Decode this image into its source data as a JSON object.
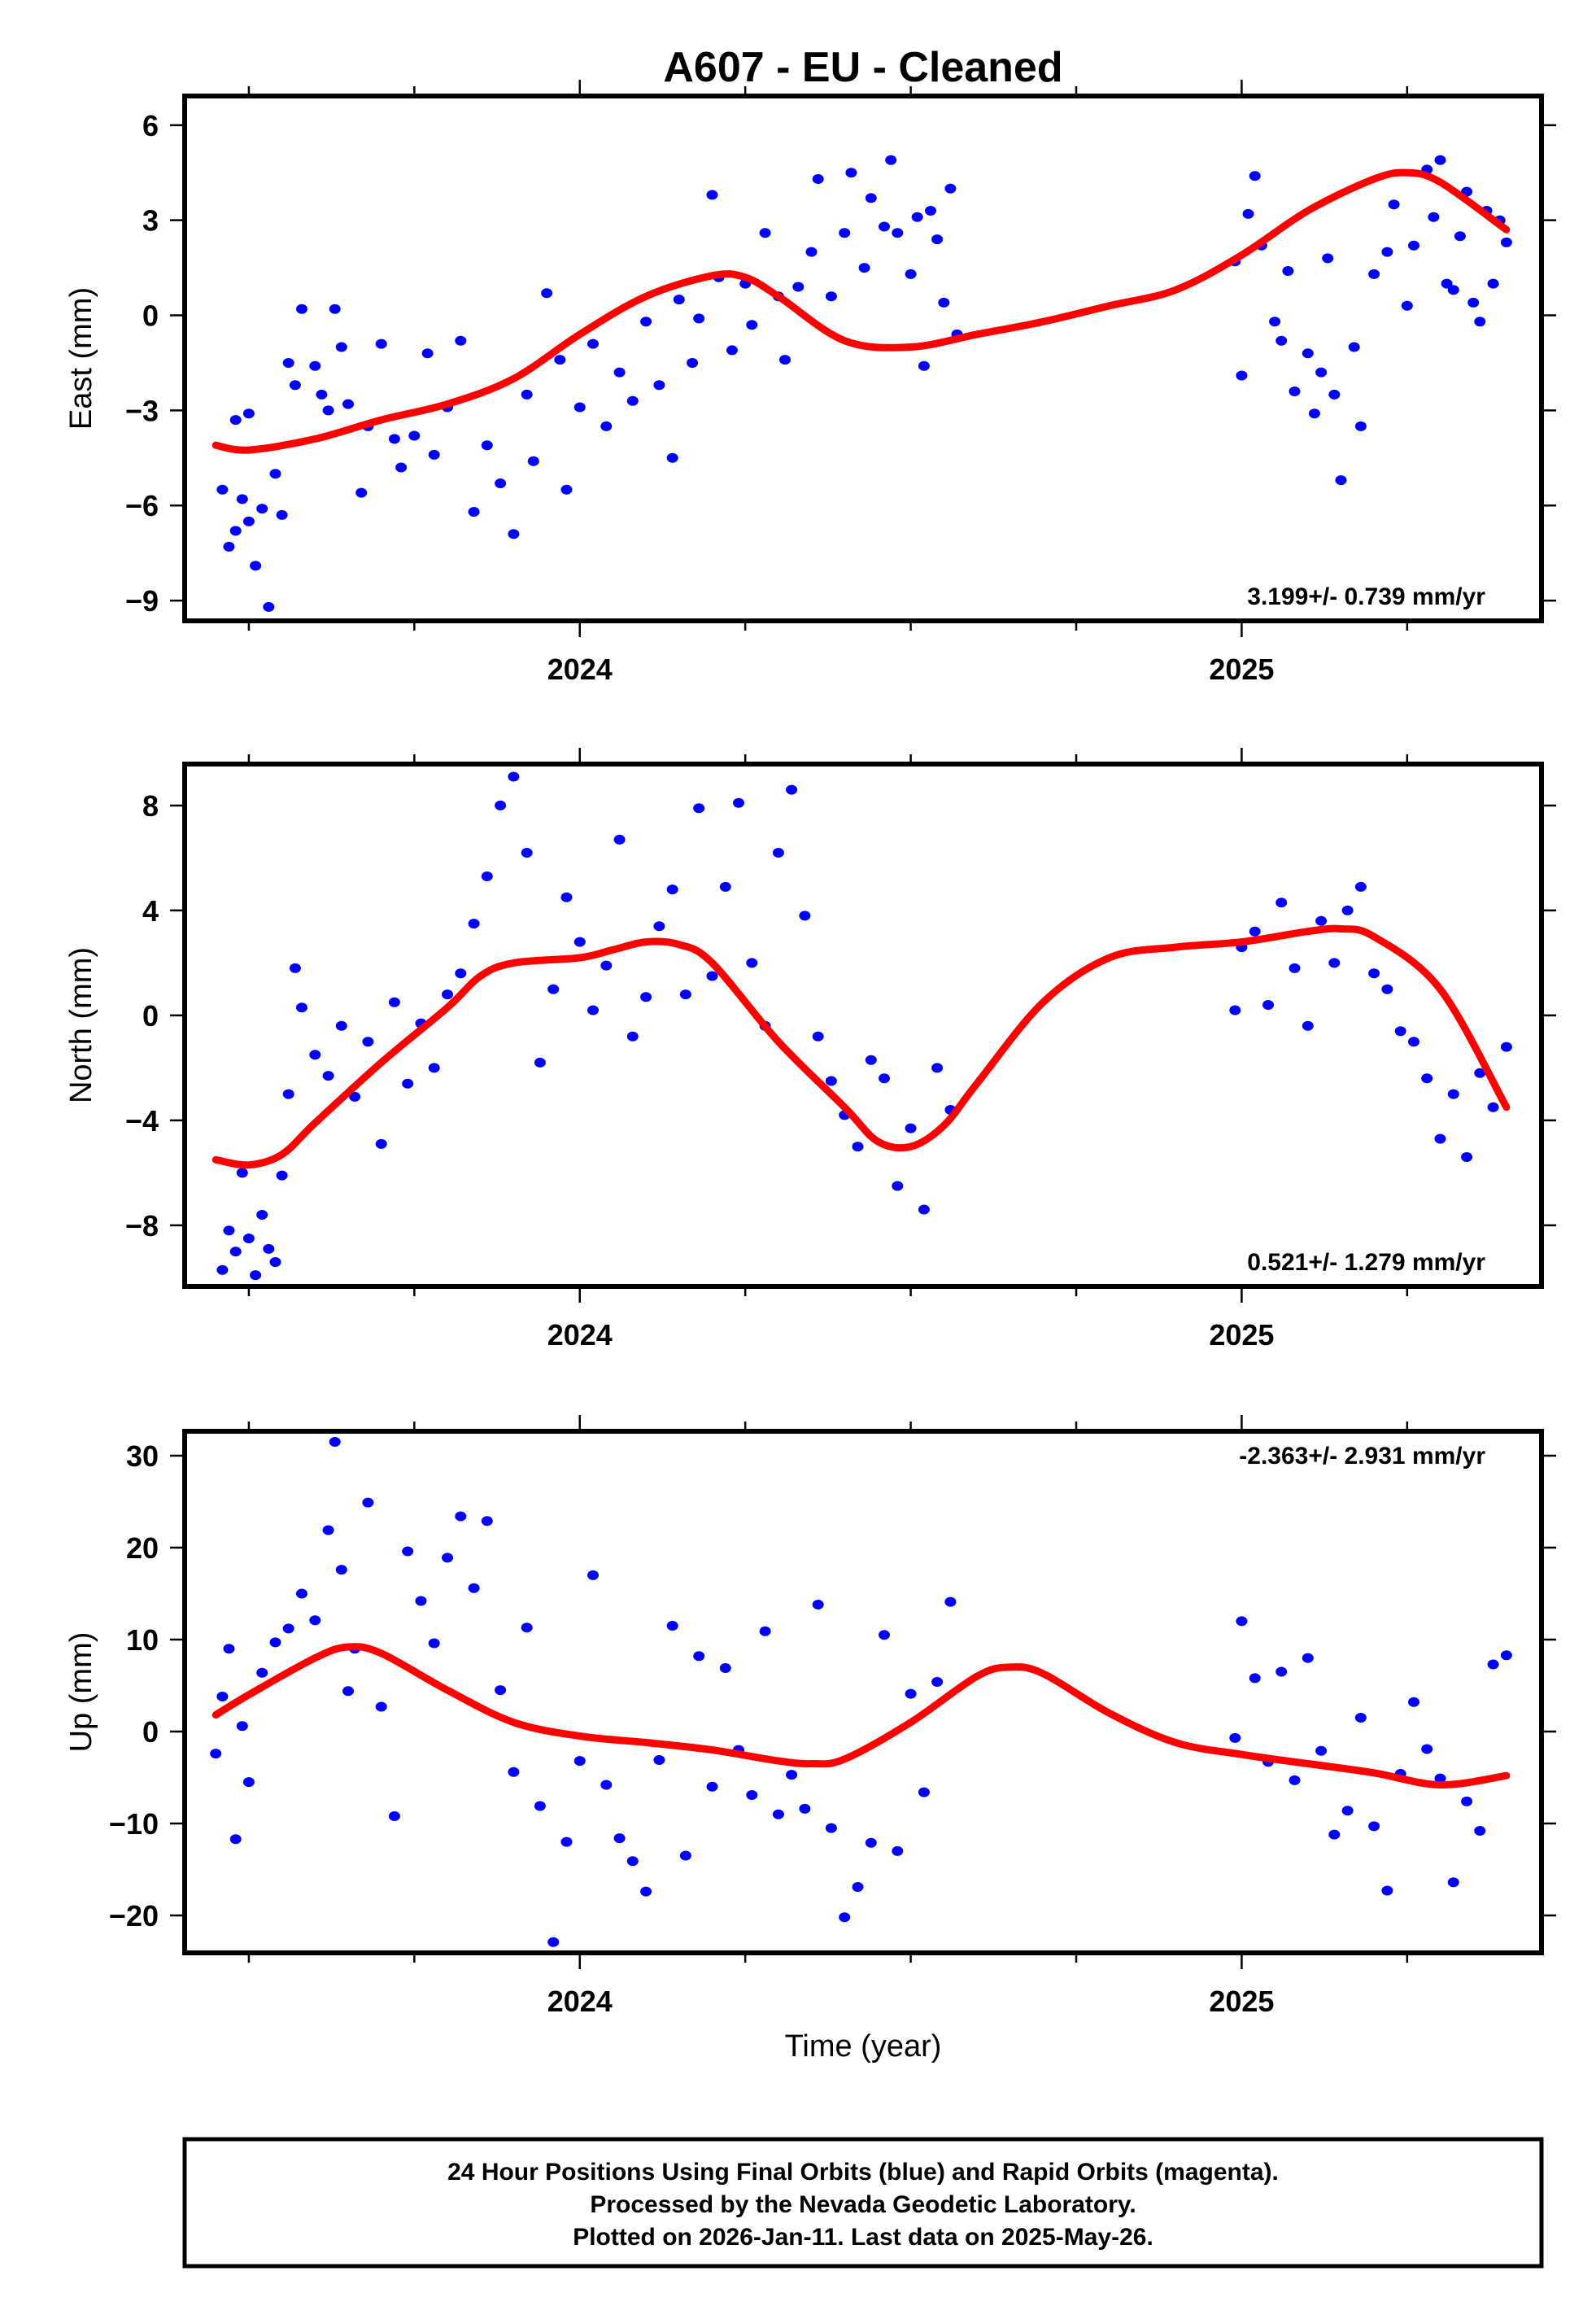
{
  "chart_data": {
    "type": "scatter",
    "title": "A607  - EU - Cleaned",
    "xlabel": "Time (year)",
    "xlim": [
      2023.403,
      2025.453
    ],
    "x_major_ticks": [
      2024,
      2025
    ],
    "x_tick_labels": [
      "2024",
      "2025"
    ],
    "x_minor_step": 0.25,
    "colors": {
      "points": "#0000ff",
      "trend": "#ff0000",
      "frame": "#000000"
    },
    "panels": [
      {
        "name": "east",
        "ylabel": "East (mm)",
        "ylim": [
          -9.64,
          6.92
        ],
        "yticks": [
          6,
          3,
          0,
          -3,
          -6,
          -9
        ],
        "ytick_labels": [
          "6",
          "3",
          "0",
          "−3",
          "−6",
          "−9"
        ],
        "rate_label": "3.199+/- 0.739 mm/yr",
        "rate_position": "bottom-right",
        "trend": {
          "x": [
            2023.45,
            2023.5,
            2023.6,
            2023.7,
            2023.8,
            2023.9,
            2024.0,
            2024.1,
            2024.2,
            2024.25,
            2024.3,
            2024.4,
            2024.5,
            2024.6,
            2024.7,
            2024.8,
            2024.9,
            2025.0,
            2025.1,
            2025.2,
            2025.25,
            2025.3,
            2025.4
          ],
          "y": [
            -4.1,
            -4.25,
            -3.9,
            -3.3,
            -2.8,
            -2.0,
            -0.6,
            0.6,
            1.25,
            1.2,
            0.6,
            -0.8,
            -1.0,
            -0.6,
            -0.2,
            0.3,
            0.8,
            1.9,
            3.3,
            4.3,
            4.5,
            4.2,
            2.7
          ]
        },
        "points": {
          "x": [
            2023.46,
            2023.47,
            2023.48,
            2023.48,
            2023.49,
            2023.5,
            2023.5,
            2023.51,
            2023.52,
            2023.53,
            2023.54,
            2023.55,
            2023.56,
            2023.57,
            2023.58,
            2023.6,
            2023.61,
            2023.62,
            2023.63,
            2023.64,
            2023.65,
            2023.67,
            2023.68,
            2023.7,
            2023.72,
            2023.73,
            2023.75,
            2023.77,
            2023.78,
            2023.8,
            2023.82,
            2023.84,
            2023.86,
            2023.88,
            2023.9,
            2023.92,
            2023.93,
            2023.95,
            2023.97,
            2023.98,
            2024.0,
            2024.02,
            2024.04,
            2024.06,
            2024.08,
            2024.1,
            2024.12,
            2024.14,
            2024.15,
            2024.17,
            2024.18,
            2024.2,
            2024.21,
            2024.23,
            2024.25,
            2024.26,
            2024.28,
            2024.3,
            2024.31,
            2024.33,
            2024.35,
            2024.36,
            2024.38,
            2024.4,
            2024.41,
            2024.43,
            2024.44,
            2024.46,
            2024.47,
            2024.48,
            2024.5,
            2024.51,
            2024.52,
            2024.53,
            2024.54,
            2024.55,
            2024.56,
            2024.57,
            2024.99,
            2025.0,
            2025.01,
            2025.02,
            2025.03,
            2025.05,
            2025.06,
            2025.07,
            2025.08,
            2025.1,
            2025.11,
            2025.12,
            2025.13,
            2025.14,
            2025.15,
            2025.17,
            2025.18,
            2025.2,
            2025.22,
            2025.23,
            2025.25,
            2025.26,
            2025.28,
            2025.29,
            2025.3,
            2025.31,
            2025.32,
            2025.33,
            2025.34,
            2025.35,
            2025.36,
            2025.37,
            2025.38,
            2025.39,
            2025.4
          ],
          "y": [
            -5.5,
            -7.3,
            -6.8,
            -3.3,
            -5.8,
            -6.5,
            -3.1,
            -7.9,
            -6.1,
            -9.2,
            -5.0,
            -6.3,
            -1.5,
            -2.2,
            0.2,
            -1.6,
            -2.5,
            -3.0,
            0.2,
            -1.0,
            -2.8,
            -5.6,
            -3.5,
            -0.9,
            -3.9,
            -4.8,
            -3.8,
            -1.2,
            -4.4,
            -2.9,
            -0.8,
            -6.2,
            -4.1,
            -5.3,
            -6.9,
            -2.5,
            -4.6,
            0.7,
            -1.4,
            -5.5,
            -2.9,
            -0.9,
            -3.5,
            -1.8,
            -2.7,
            -0.2,
            -2.2,
            -4.5,
            0.5,
            -1.5,
            -0.1,
            3.8,
            1.2,
            -1.1,
            1.0,
            -0.3,
            2.6,
            0.6,
            -1.4,
            0.9,
            2.0,
            4.3,
            0.6,
            2.6,
            4.5,
            1.5,
            3.7,
            2.8,
            4.9,
            2.6,
            1.3,
            3.1,
            -1.6,
            3.3,
            2.4,
            0.4,
            4.0,
            -0.6,
            1.7,
            -1.9,
            3.2,
            4.4,
            2.2,
            -0.2,
            -0.8,
            1.4,
            -2.4,
            -1.2,
            -3.1,
            -1.8,
            1.8,
            -2.5,
            -5.2,
            -1.0,
            -3.5,
            1.3,
            2.0,
            3.5,
            0.3,
            2.2,
            4.6,
            3.1,
            4.9,
            1.0,
            0.8,
            2.5,
            3.9,
            0.4,
            -0.2,
            3.3,
            1.0,
            3.0,
            2.3
          ],
          "note": "representative sample"
        }
      },
      {
        "name": "north",
        "ylabel": "North (mm)",
        "ylim": [
          -10.33,
          9.58
        ],
        "yticks": [
          8,
          4,
          0,
          -4,
          -8
        ],
        "ytick_labels": [
          "8",
          "4",
          "0",
          "−4",
          "−8"
        ],
        "rate_label": "0.521+/- 1.279 mm/yr",
        "rate_position": "bottom-right",
        "trend": {
          "x": [
            2023.45,
            2023.5,
            2023.55,
            2023.6,
            2023.7,
            2023.8,
            2023.85,
            2023.9,
            2024.0,
            2024.05,
            2024.1,
            2024.15,
            2024.2,
            2024.3,
            2024.4,
            2024.45,
            2024.5,
            2024.55,
            2024.6,
            2024.7,
            2024.8,
            2024.9,
            2025.0,
            2025.1,
            2025.15,
            2025.2,
            2025.3,
            2025.4
          ],
          "y": [
            -5.5,
            -5.7,
            -5.3,
            -4.1,
            -1.8,
            0.3,
            1.5,
            2.0,
            2.2,
            2.5,
            2.8,
            2.7,
            2.0,
            -1.0,
            -3.5,
            -4.8,
            -5.0,
            -4.2,
            -2.6,
            0.5,
            2.2,
            2.6,
            2.8,
            3.2,
            3.3,
            3.0,
            1.0,
            -3.5
          ]
        },
        "points": {
          "x": [
            2023.46,
            2023.47,
            2023.48,
            2023.49,
            2023.5,
            2023.51,
            2023.52,
            2023.53,
            2023.54,
            2023.55,
            2023.56,
            2023.57,
            2023.58,
            2023.6,
            2023.62,
            2023.64,
            2023.66,
            2023.68,
            2023.7,
            2023.72,
            2023.74,
            2023.76,
            2023.78,
            2023.8,
            2023.82,
            2023.84,
            2023.86,
            2023.88,
            2023.9,
            2023.92,
            2023.94,
            2023.96,
            2023.98,
            2024.0,
            2024.02,
            2024.04,
            2024.06,
            2024.08,
            2024.1,
            2024.12,
            2024.14,
            2024.16,
            2024.18,
            2024.2,
            2024.22,
            2024.24,
            2024.26,
            2024.28,
            2024.3,
            2024.32,
            2024.34,
            2024.36,
            2024.38,
            2024.4,
            2024.42,
            2024.44,
            2024.46,
            2024.48,
            2024.5,
            2024.52,
            2024.54,
            2024.56,
            2024.99,
            2025.0,
            2025.02,
            2025.04,
            2025.06,
            2025.08,
            2025.1,
            2025.12,
            2025.14,
            2025.16,
            2025.18,
            2025.2,
            2025.22,
            2025.24,
            2025.26,
            2025.28,
            2025.3,
            2025.32,
            2025.34,
            2025.36,
            2025.38,
            2025.4
          ],
          "y": [
            -9.7,
            -8.2,
            -9.0,
            -6.0,
            -8.5,
            -9.9,
            -7.6,
            -8.9,
            -9.4,
            -6.1,
            -3.0,
            1.8,
            0.3,
            -1.5,
            -2.3,
            -0.4,
            -3.1,
            -1.0,
            -4.9,
            0.5,
            -2.6,
            -0.3,
            -2.0,
            0.8,
            1.6,
            3.5,
            5.3,
            8.0,
            9.1,
            6.2,
            -1.8,
            1.0,
            4.5,
            2.8,
            0.2,
            1.9,
            6.7,
            -0.8,
            0.7,
            3.4,
            4.8,
            0.8,
            7.9,
            1.5,
            4.9,
            8.1,
            2.0,
            -0.4,
            6.2,
            8.6,
            3.8,
            -0.8,
            -2.5,
            -3.8,
            -5.0,
            -1.7,
            -2.4,
            -6.5,
            -4.3,
            -7.4,
            -2.0,
            -3.6,
            0.2,
            2.6,
            3.2,
            0.4,
            4.3,
            1.8,
            -0.4,
            3.6,
            2.0,
            4.0,
            4.9,
            1.6,
            1.0,
            -0.6,
            -1.0,
            -2.4,
            -4.7,
            -3.0,
            -5.4,
            -2.2,
            -3.5,
            -1.2
          ],
          "note": "representative sample"
        }
      },
      {
        "name": "up",
        "ylabel": "Up (mm)",
        "ylim": [
          -24.07,
          32.65
        ],
        "yticks": [
          30,
          20,
          10,
          0,
          -10,
          -20
        ],
        "ytick_labels": [
          "30",
          "20",
          "10",
          "0",
          "−10",
          "−20"
        ],
        "rate_label": "-2.363+/- 2.931 mm/yr",
        "rate_position": "top-right",
        "trend": {
          "x": [
            2023.45,
            2023.5,
            2023.6,
            2023.65,
            2023.7,
            2023.8,
            2023.9,
            2024.0,
            2024.1,
            2024.2,
            2024.3,
            2024.35,
            2024.4,
            2024.5,
            2024.6,
            2024.65,
            2024.7,
            2024.8,
            2024.9,
            2025.0,
            2025.1,
            2025.2,
            2025.3,
            2025.4
          ],
          "y": [
            1.8,
            4.0,
            8.0,
            9.2,
            8.5,
            4.5,
            1.0,
            -0.5,
            -1.2,
            -2.0,
            -3.2,
            -3.5,
            -3.0,
            1.0,
            6.0,
            7.0,
            6.3,
            2.0,
            -1.2,
            -2.5,
            -3.5,
            -4.5,
            -5.8,
            -4.8
          ]
        },
        "points": {
          "x": [
            2023.45,
            2023.46,
            2023.47,
            2023.48,
            2023.49,
            2023.5,
            2023.52,
            2023.54,
            2023.56,
            2023.58,
            2023.6,
            2023.62,
            2023.63,
            2023.64,
            2023.65,
            2023.66,
            2023.68,
            2023.7,
            2023.72,
            2023.74,
            2023.76,
            2023.78,
            2023.8,
            2023.82,
            2023.84,
            2023.86,
            2023.88,
            2023.9,
            2023.92,
            2023.94,
            2023.96,
            2023.98,
            2024.0,
            2024.02,
            2024.04,
            2024.06,
            2024.08,
            2024.1,
            2024.12,
            2024.14,
            2024.16,
            2024.18,
            2024.2,
            2024.22,
            2024.24,
            2024.26,
            2024.28,
            2024.3,
            2024.32,
            2024.34,
            2024.36,
            2024.38,
            2024.4,
            2024.42,
            2024.44,
            2024.46,
            2024.48,
            2024.5,
            2024.52,
            2024.54,
            2024.56,
            2024.99,
            2025.0,
            2025.02,
            2025.04,
            2025.06,
            2025.08,
            2025.1,
            2025.12,
            2025.14,
            2025.16,
            2025.18,
            2025.2,
            2025.22,
            2025.24,
            2025.26,
            2025.28,
            2025.3,
            2025.32,
            2025.34,
            2025.36,
            2025.38,
            2025.4
          ],
          "y": [
            -2.4,
            3.8,
            9.0,
            -11.7,
            0.6,
            -5.5,
            6.4,
            9.7,
            11.2,
            15.0,
            12.1,
            21.9,
            31.5,
            17.6,
            4.4,
            9.0,
            24.9,
            2.7,
            -9.2,
            19.6,
            14.2,
            9.6,
            18.9,
            23.4,
            15.6,
            22.9,
            4.5,
            -4.4,
            11.3,
            -8.1,
            -22.9,
            -12.0,
            -3.2,
            17.0,
            -5.8,
            -11.6,
            -14.1,
            -17.4,
            -3.1,
            11.5,
            -13.5,
            8.2,
            -6.0,
            6.9,
            -2.0,
            -6.9,
            10.9,
            -9.0,
            -4.7,
            -8.4,
            13.8,
            -10.5,
            -20.2,
            -16.9,
            -12.1,
            10.5,
            -13.0,
            4.1,
            -6.6,
            5.4,
            14.1,
            -0.7,
            12.0,
            5.8,
            -3.3,
            6.5,
            -5.3,
            8.0,
            -2.1,
            -11.2,
            -8.6,
            1.5,
            -10.3,
            -17.3,
            -4.6,
            3.2,
            -1.9,
            -5.1,
            -16.4,
            -7.6,
            -10.8,
            7.3,
            8.3
          ],
          "note": "representative sample"
        }
      }
    ]
  },
  "footer": {
    "line1": "24 Hour Positions Using Final Orbits (blue) and Rapid Orbits (magenta).",
    "line2": "Processed by the Nevada Geodetic Laboratory.",
    "line3": "Plotted on 2026-Jan-11. Last data on 2025-May-26."
  }
}
